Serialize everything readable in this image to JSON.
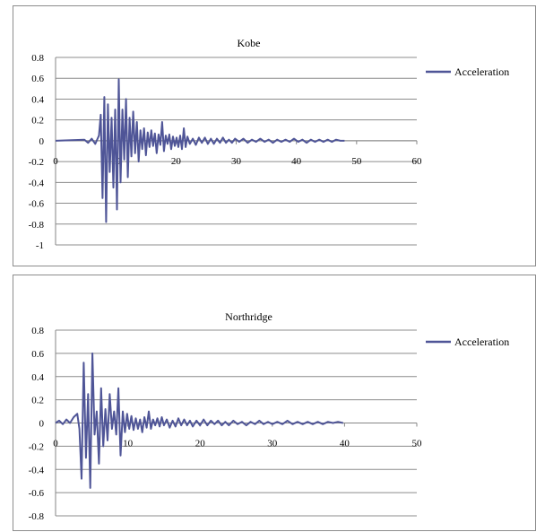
{
  "colors": {
    "series": "#4F5597",
    "grid": "#8c8c8c",
    "axis": "#868686"
  },
  "chart_data": [
    {
      "type": "line",
      "title": "Kobe",
      "xlabel": "",
      "ylabel": "",
      "xlim": [
        0,
        60
      ],
      "ylim": [
        -1,
        0.8
      ],
      "xticks": [
        0,
        10,
        20,
        30,
        40,
        50,
        60
      ],
      "yticks": [
        0.8,
        0.6,
        0.4,
        0.2,
        0,
        -0.2,
        -0.4,
        -0.6,
        -0.8,
        -1
      ],
      "grid": true,
      "legend": {
        "position": "right",
        "entries": [
          "Acceleration"
        ]
      },
      "series": [
        {
          "name": "Acceleration",
          "x": [
            0,
            4.8,
            5.4,
            6.0,
            6.6,
            7.2,
            7.5,
            7.8,
            8.1,
            8.4,
            8.7,
            9.0,
            9.3,
            9.6,
            9.9,
            10.2,
            10.5,
            10.8,
            11.1,
            11.4,
            11.7,
            12.0,
            12.3,
            12.6,
            12.9,
            13.2,
            13.5,
            13.8,
            14.1,
            14.4,
            14.7,
            15.0,
            15.3,
            15.6,
            15.9,
            16.2,
            16.5,
            16.8,
            17.1,
            17.4,
            17.7,
            18.0,
            18.3,
            18.6,
            18.9,
            19.2,
            19.5,
            19.8,
            20.1,
            20.4,
            20.7,
            21.0,
            21.3,
            21.6,
            21.9,
            22.3,
            22.8,
            23.3,
            23.8,
            24.3,
            24.8,
            25.3,
            25.8,
            26.3,
            26.8,
            27.3,
            27.8,
            28.3,
            28.8,
            29.3,
            29.8,
            30.5,
            31.2,
            31.9,
            32.6,
            33.3,
            34.0,
            34.7,
            35.4,
            36.1,
            36.8,
            37.5,
            38.2,
            38.9,
            39.6,
            40.3,
            41.0,
            41.7,
            42.4,
            43.1,
            43.8,
            44.5,
            45.2,
            45.9,
            46.6,
            47.3,
            48.0
          ],
          "y": [
            0,
            0.01,
            -0.02,
            0.02,
            -0.03,
            0.05,
            0.25,
            -0.55,
            0.42,
            -0.78,
            0.35,
            -0.3,
            0.22,
            -0.45,
            0.3,
            -0.66,
            0.59,
            -0.4,
            0.3,
            -0.18,
            0.4,
            -0.35,
            0.22,
            -0.15,
            0.28,
            -0.12,
            0.18,
            -0.2,
            0.1,
            -0.08,
            0.12,
            -0.14,
            0.08,
            -0.06,
            0.1,
            -0.05,
            0.07,
            -0.12,
            0.06,
            -0.04,
            0.18,
            -0.1,
            0.05,
            -0.03,
            0.06,
            -0.08,
            0.04,
            -0.05,
            0.03,
            -0.06,
            0.05,
            -0.08,
            0.12,
            -0.06,
            0.04,
            -0.03,
            0.02,
            -0.04,
            0.03,
            -0.02,
            0.03,
            -0.03,
            0.02,
            -0.03,
            0.02,
            -0.02,
            0.03,
            -0.02,
            0.01,
            -0.02,
            0.02,
            -0.01,
            0.02,
            -0.02,
            0.01,
            -0.01,
            0.02,
            -0.01,
            0.01,
            -0.02,
            0.01,
            -0.01,
            0.01,
            -0.01,
            0.02,
            -0.01,
            0.01,
            -0.02,
            0.01,
            -0.01,
            0.01,
            -0.01,
            0.01,
            -0.01,
            0.01,
            0,
            0
          ]
        }
      ]
    },
    {
      "type": "line",
      "title": "Northridge",
      "xlabel": "",
      "ylabel": "",
      "xlim": [
        0,
        50
      ],
      "ylim": [
        -0.8,
        0.8
      ],
      "xticks": [
        0,
        10,
        20,
        30,
        40,
        50
      ],
      "yticks": [
        0.8,
        0.6,
        0.4,
        0.2,
        0,
        -0.2,
        -0.4,
        -0.6,
        -0.8
      ],
      "grid": true,
      "legend": {
        "position": "right",
        "entries": [
          "Acceleration"
        ]
      },
      "series": [
        {
          "name": "Acceleration",
          "x": [
            0,
            0.5,
            1.0,
            1.5,
            2.0,
            2.5,
            3.0,
            3.3,
            3.6,
            3.9,
            4.2,
            4.5,
            4.8,
            5.1,
            5.4,
            5.7,
            6.0,
            6.3,
            6.6,
            6.9,
            7.2,
            7.5,
            7.8,
            8.1,
            8.4,
            8.7,
            9.0,
            9.3,
            9.6,
            9.9,
            10.2,
            10.5,
            10.8,
            11.1,
            11.4,
            11.7,
            12.0,
            12.3,
            12.6,
            12.9,
            13.2,
            13.5,
            13.8,
            14.1,
            14.4,
            14.7,
            15.0,
            15.4,
            15.8,
            16.2,
            16.6,
            17.0,
            17.4,
            17.8,
            18.2,
            18.6,
            19.0,
            19.5,
            20.0,
            20.5,
            21.0,
            21.5,
            22.0,
            22.5,
            23.0,
            23.5,
            24.0,
            24.6,
            25.2,
            25.8,
            26.4,
            27.0,
            27.6,
            28.2,
            28.8,
            29.4,
            30.0,
            30.7,
            31.4,
            32.1,
            32.8,
            33.5,
            34.2,
            34.9,
            35.6,
            36.3,
            37.0,
            37.7,
            38.4,
            39.1,
            39.8
          ],
          "y": [
            0,
            0.02,
            -0.01,
            0.03,
            0.0,
            0.05,
            0.08,
            -0.05,
            -0.48,
            0.52,
            -0.3,
            0.25,
            -0.56,
            0.6,
            -0.1,
            0.1,
            -0.35,
            0.3,
            -0.2,
            0.12,
            -0.15,
            0.25,
            -0.05,
            0.1,
            -0.1,
            0.3,
            -0.28,
            0.1,
            -0.08,
            0.08,
            -0.05,
            0.06,
            -0.06,
            0.04,
            -0.05,
            0.03,
            -0.08,
            0.05,
            -0.04,
            0.1,
            -0.05,
            0.03,
            -0.02,
            0.04,
            -0.03,
            0.05,
            -0.02,
            0.03,
            -0.04,
            0.02,
            -0.03,
            0.04,
            -0.02,
            0.03,
            -0.02,
            0.02,
            -0.03,
            0.02,
            -0.02,
            0.03,
            -0.02,
            0.02,
            -0.01,
            0.02,
            -0.02,
            0.01,
            -0.02,
            0.02,
            -0.01,
            0.01,
            -0.02,
            0.01,
            -0.01,
            0.02,
            -0.01,
            0.01,
            -0.01,
            0.01,
            -0.01,
            0.02,
            -0.01,
            0.01,
            -0.01,
            0.01,
            -0.01,
            0.01,
            -0.01,
            0.01,
            0,
            0.01,
            0
          ]
        }
      ]
    }
  ]
}
